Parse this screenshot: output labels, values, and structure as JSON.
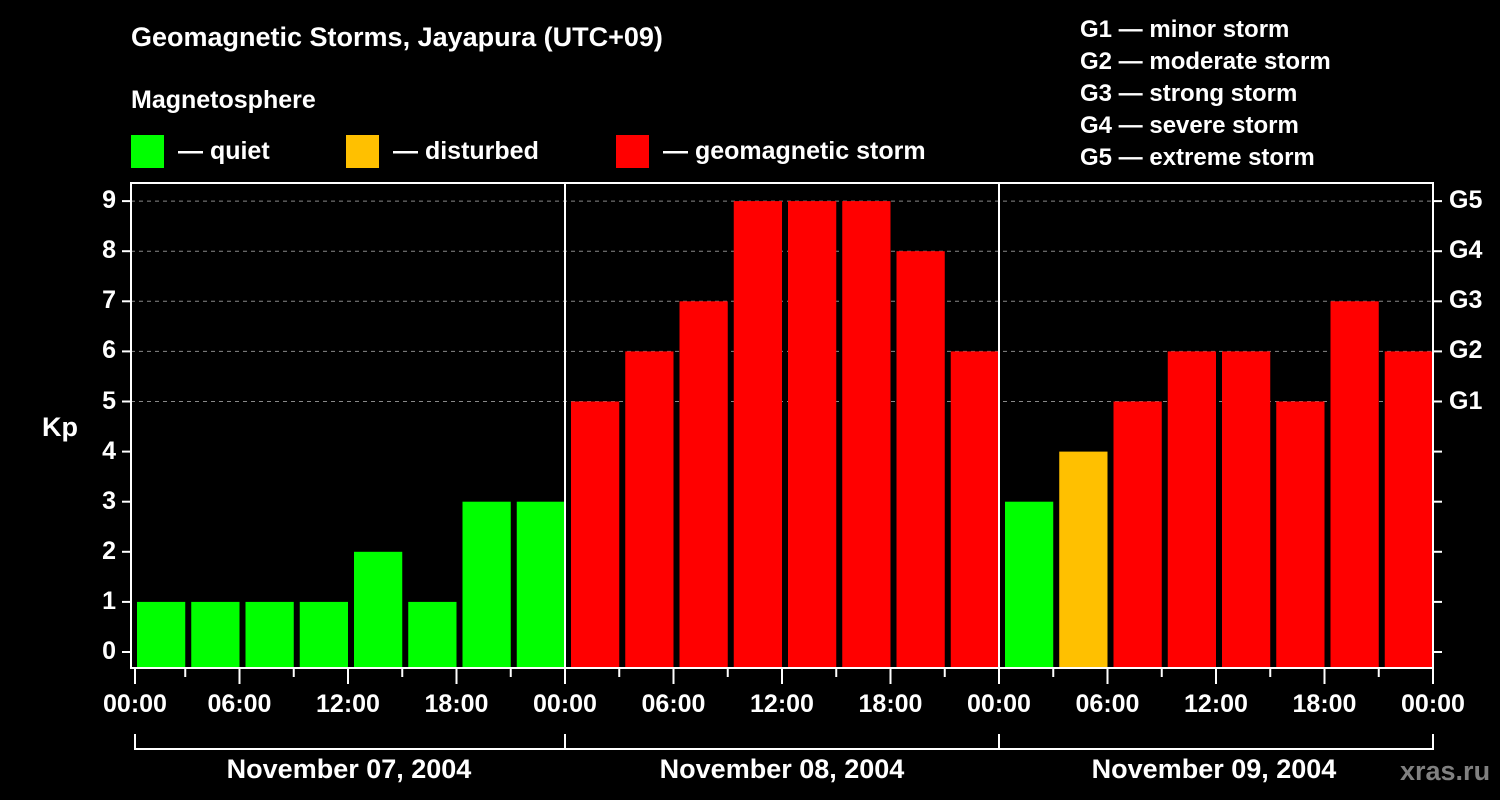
{
  "header": {
    "title": "Geomagnetic Storms, Jayapura (UTC+09)",
    "subtitle": "Magnetosphere"
  },
  "legend": [
    {
      "label": "— quiet",
      "color": "#00ff00"
    },
    {
      "label": "— disturbed",
      "color": "#ffc000"
    },
    {
      "label": "— geomagnetic storm",
      "color": "#ff0000"
    }
  ],
  "storm_scale": [
    "G1 — minor storm",
    "G2 — moderate storm",
    "G3 — strong storm",
    "G4 — severe storm",
    "G5 — extreme storm"
  ],
  "watermark": "xras.ru",
  "chart_data": {
    "type": "bar",
    "title": "Geomagnetic Storms, Jayapura (UTC+09)",
    "subtitle": "Magnetosphere",
    "xlabel": "",
    "ylabel": "Kp",
    "ylim": [
      0,
      9
    ],
    "y_ticks": [
      0,
      1,
      2,
      3,
      4,
      5,
      6,
      7,
      8,
      9
    ],
    "right_axis_ticks": [
      {
        "value": 5,
        "label": "G1"
      },
      {
        "value": 6,
        "label": "G2"
      },
      {
        "value": 7,
        "label": "G3"
      },
      {
        "value": 8,
        "label": "G4"
      },
      {
        "value": 9,
        "label": "G5"
      }
    ],
    "grid": "dashed horizontal lines at Kp 5-9",
    "x_tick_labels": [
      "00:00",
      "06:00",
      "12:00",
      "18:00",
      "00:00",
      "06:00",
      "12:00",
      "18:00",
      "00:00",
      "06:00",
      "12:00",
      "18:00",
      "00:00"
    ],
    "days": [
      "November 07, 2004",
      "November 08, 2004",
      "November 09, 2004"
    ],
    "categories": [
      "Nov07 00-03",
      "Nov07 03-06",
      "Nov07 06-09",
      "Nov07 09-12",
      "Nov07 12-15",
      "Nov07 15-18",
      "Nov07 18-21",
      "Nov07 21-24",
      "Nov08 00-03",
      "Nov08 03-06",
      "Nov08 06-09",
      "Nov08 09-12",
      "Nov08 12-15",
      "Nov08 15-18",
      "Nov08 18-21",
      "Nov08 21-24",
      "Nov09 00-03",
      "Nov09 03-06",
      "Nov09 06-09",
      "Nov09 09-12",
      "Nov09 12-15",
      "Nov09 15-18",
      "Nov09 18-21",
      "Nov09 21-24"
    ],
    "values": [
      1,
      1,
      1,
      1,
      2,
      1,
      3,
      3,
      5,
      6,
      7,
      9,
      9,
      9,
      8,
      6,
      3,
      4,
      5,
      6,
      6,
      5,
      7,
      6
    ],
    "colors": {
      "quiet": "#00ff00",
      "disturbed": "#ffc000",
      "storm": "#ff0000"
    },
    "color_rule": "Kp<=3 quiet, Kp=4 disturbed, Kp>=5 storm"
  }
}
